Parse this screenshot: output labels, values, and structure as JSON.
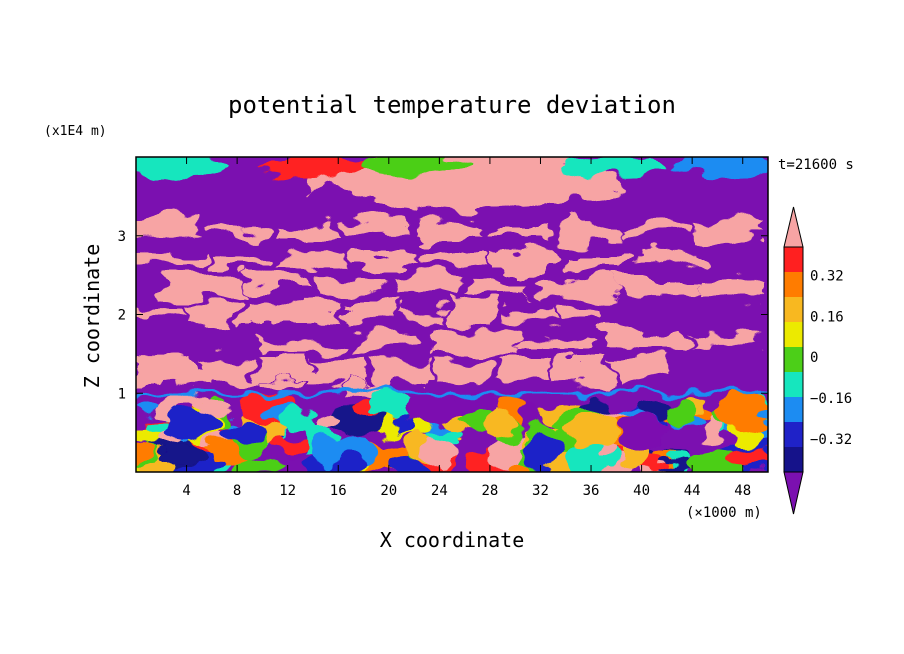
{
  "chart_data": {
    "type": "heatmap",
    "title": "potential temperature deviation",
    "xlabel": "X coordinate",
    "ylabel": "Z coordinate",
    "x_unit": "(×1000 m)",
    "y_unit": "(x1E4 m)",
    "time_label": "t=21600 s",
    "xlim": [
      0,
      50
    ],
    "ylim": [
      0,
      4
    ],
    "x_ticks": [
      4,
      8,
      12,
      16,
      20,
      24,
      28,
      32,
      36,
      40,
      44,
      48
    ],
    "y_ticks": [
      1,
      2,
      3
    ],
    "colorbar": {
      "levels": [
        -0.48,
        -0.4,
        -0.32,
        -0.24,
        -0.16,
        -0.08,
        0,
        0.08,
        0.16,
        0.24,
        0.32,
        0.4
      ],
      "tick_labels": [
        "0.32",
        "0.16",
        "0",
        "−0.16",
        "−0.32"
      ],
      "tick_values": [
        0.32,
        0.16,
        0,
        -0.16,
        -0.32
      ],
      "colors": [
        "#7b10b0",
        "#15128a",
        "#1f22c8",
        "#1c8cf2",
        "#16e6be",
        "#4ccf18",
        "#ecea00",
        "#f8b820",
        "#ff7c00",
        "#ff2020",
        "#f7a4a4"
      ],
      "extend": "both"
    }
  }
}
